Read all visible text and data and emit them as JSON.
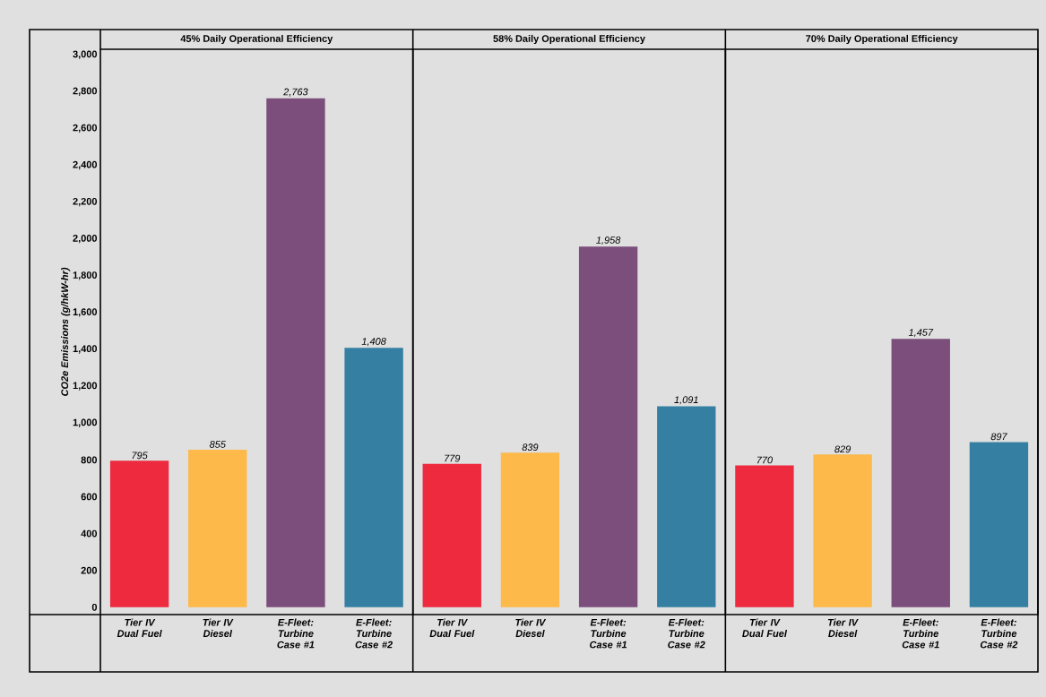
{
  "chart_data": [
    {
      "type": "bar",
      "title": "45% Daily Operational Efficiency",
      "ylabel": "CO2e Emissions (g/hkW-hr)",
      "categories": [
        "Tier IV Dual Fuel",
        "Tier IV Diesel",
        "E-Fleet: Turbine Case #1",
        "E-Fleet: Turbine Case #2"
      ],
      "values": [
        795,
        855,
        2763,
        1408
      ],
      "value_labels": [
        "795",
        "855",
        "2,763",
        "1,408"
      ],
      "colors": [
        "#ee2a3e",
        "#fdb94a",
        "#7b4e7c",
        "#3580a2"
      ],
      "ylim": [
        -40,
        3030
      ],
      "yticks": [
        0,
        200,
        400,
        600,
        800,
        {
          "value": 1000,
          "label": "1,000"
        },
        {
          "value": 1200,
          "label": "1,200"
        },
        {
          "value": 1400,
          "label": "1,400"
        },
        {
          "value": 1600,
          "label": "1,600"
        },
        {
          "value": 1800,
          "label": "1,800"
        },
        {
          "value": 2000,
          "label": "2,000"
        },
        {
          "value": 2200,
          "label": "2,200"
        },
        {
          "value": 2400,
          "label": "2,400"
        },
        {
          "value": 2600,
          "label": "2,600"
        },
        {
          "value": 2800,
          "label": "2,800"
        },
        {
          "value": 3000,
          "label": "3,000"
        }
      ]
    },
    {
      "type": "bar",
      "title": "58% Daily Operational Efficiency",
      "categories": [
        "Tier IV Dual Fuel",
        "Tier IV Diesel",
        "E-Fleet: Turbine Case #1",
        "E-Fleet: Turbine Case #2"
      ],
      "values": [
        779,
        839,
        1958,
        1091
      ],
      "value_labels": [
        "779",
        "839",
        "1,958",
        "1,091"
      ],
      "colors": [
        "#ee2a3e",
        "#fdb94a",
        "#7b4e7c",
        "#3580a2"
      ],
      "ylim": [
        -40,
        3030
      ],
      "tick_labels": "x"
    },
    {
      "type": "bar",
      "title": "70% Daily Operational Efficiency",
      "categories": [
        "Tier IV Dual Fuel",
        "Tier IV Diesel",
        "E-Fleet: Turbine Case #1",
        "E-Fleet: Turbine Case #2"
      ],
      "values": [
        770,
        829,
        1457,
        897
      ],
      "value_labels": [
        "770",
        "829",
        "1,457",
        "897"
      ],
      "colors": [
        "#ee2a3e",
        "#fdb94a",
        "#7b4e7c",
        "#3580a2"
      ],
      "ylim": [
        -40,
        3030
      ],
      "tick_labels": "x"
    }
  ]
}
